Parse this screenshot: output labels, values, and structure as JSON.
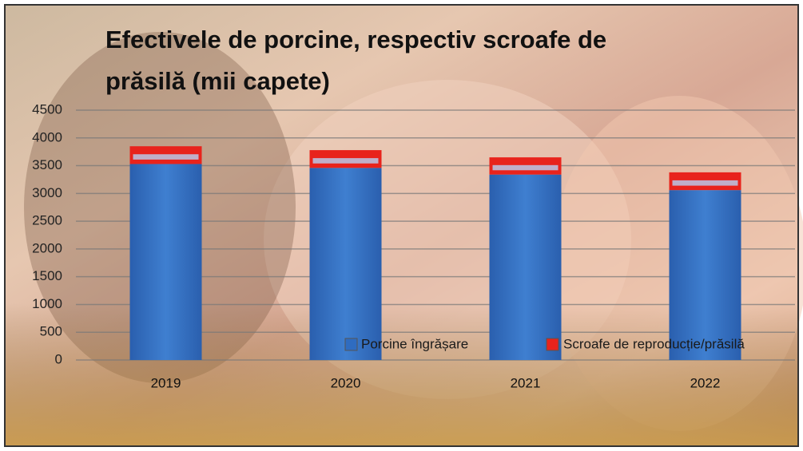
{
  "chart_data": {
    "type": "bar",
    "title_line1": "Efectivele de porcine, respectiv scroafe de",
    "title_line2": "prăsilă (mii capete)",
    "categories": [
      "2019",
      "2020",
      "2021",
      "2022"
    ],
    "series": [
      {
        "name": "Porcine îngrășare",
        "color": "#2f6cc0",
        "values": [
          3530,
          3460,
          3340,
          3060
        ]
      },
      {
        "name": "Scroafe de reproducție/prăsilă",
        "color": "#e8231c",
        "values": [
          320,
          320,
          310,
          320
        ]
      }
    ],
    "stacked": true,
    "ylim": [
      0,
      4500
    ],
    "yticks": [
      0,
      500,
      1000,
      1500,
      2000,
      2500,
      3000,
      3500,
      4000,
      4500
    ],
    "grid": true
  }
}
